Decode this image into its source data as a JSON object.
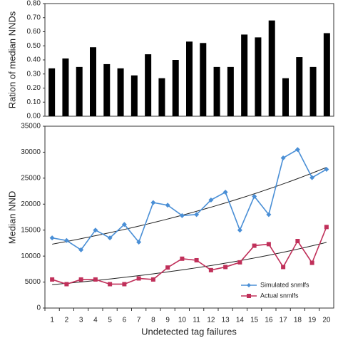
{
  "chart_data": [
    {
      "type": "bar",
      "ylabel": "Ration of median NNDs",
      "values": [
        0.34,
        0.41,
        0.35,
        0.49,
        0.37,
        0.34,
        0.29,
        0.44,
        0.27,
        0.4,
        0.53,
        0.52,
        0.35,
        0.35,
        0.58,
        0.56,
        0.68,
        0.27,
        0.42,
        0.35,
        0.59
      ],
      "color": "#000000",
      "ylim": [
        0,
        0.8
      ],
      "yticks": [
        {
          "value": 0,
          "label": "0.00"
        },
        {
          "value": 0.1,
          "label": "0.10"
        },
        {
          "value": 0.2,
          "label": "0.20"
        },
        {
          "value": 0.3,
          "label": "0.30"
        },
        {
          "value": 0.4,
          "label": "0.40"
        },
        {
          "value": 0.5,
          "label": "0.50"
        },
        {
          "value": 0.6,
          "label": "0.60"
        },
        {
          "value": 0.7,
          "label": "0.70"
        },
        {
          "value": 0.8,
          "label": "0.80"
        }
      ],
      "grid": false
    },
    {
      "type": "line",
      "xlabel": "Undetected tag failures",
      "ylabel": "Median NND",
      "categories": [
        1,
        2,
        3,
        4,
        5,
        6,
        7,
        8,
        9,
        10,
        11,
        12,
        13,
        14,
        15,
        16,
        17,
        18,
        19,
        20
      ],
      "series": [
        {
          "name": "Simulated snmlfs",
          "color": "#4a8fd6",
          "marker": "diamond",
          "values": [
            13500,
            13000,
            11200,
            15000,
            13500,
            16100,
            12700,
            20300,
            19800,
            17800,
            18000,
            20800,
            22300,
            15000,
            21500,
            18000,
            28900,
            30500,
            25100,
            26700
          ]
        },
        {
          "name": "Actual snmlfs",
          "color": "#c0305a",
          "marker": "square",
          "values": [
            5500,
            4600,
            5500,
            5500,
            4600,
            4600,
            5700,
            5500,
            7800,
            9500,
            9200,
            7300,
            7900,
            8800,
            12000,
            12300,
            7900,
            12900,
            8700,
            15600
          ]
        }
      ],
      "ylim": [
        0,
        35000
      ],
      "yticks": [
        0,
        5000,
        10000,
        15000,
        20000,
        25000,
        30000,
        35000
      ],
      "trendline": "exponential",
      "legend": "bottom-right",
      "grid": false
    }
  ]
}
